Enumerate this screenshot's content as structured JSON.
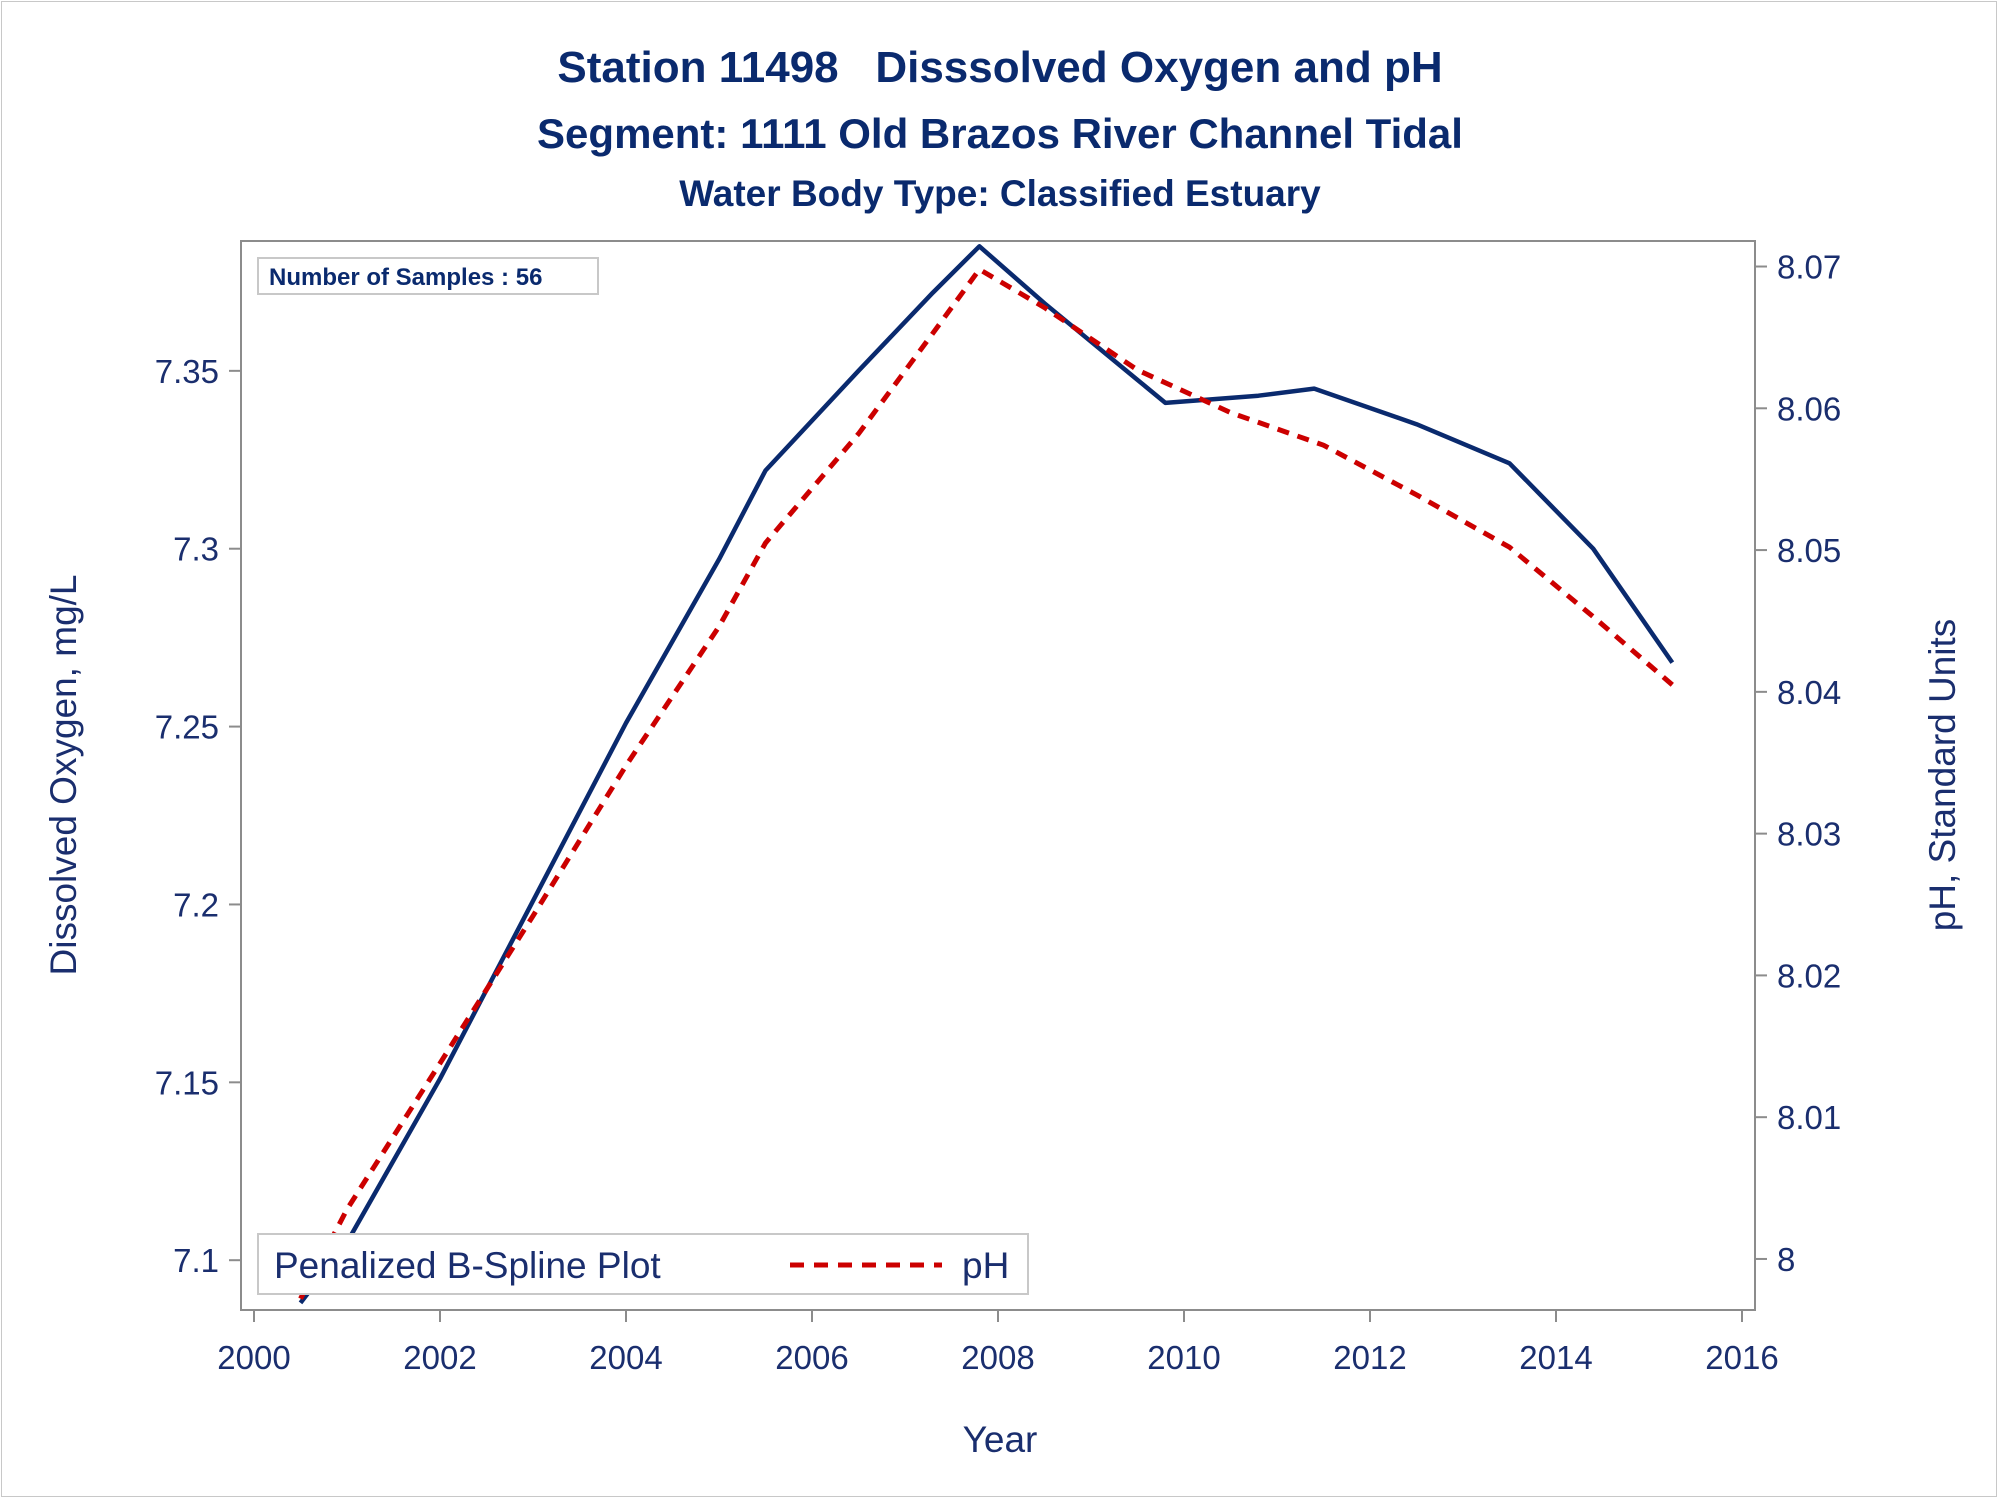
{
  "titles": {
    "line1": "Station 11498   Disssolved Oxygen and pH",
    "line2": "Segment: 1111  Old Brazos River Channel Tidal",
    "line3": "Water Body Type: Classified Estuary"
  },
  "inset": {
    "text": "Number of Samples : 56"
  },
  "legend": {
    "title": "Penalized B-Spline Plot",
    "series_label": "pH"
  },
  "colors": {
    "do_line": "#0a2a6e",
    "ph_line": "#cc0000",
    "text": "#1a2e6e",
    "axis": "#8c8c8c"
  },
  "chart_data": {
    "type": "line",
    "xlabel": "Year",
    "ylabel_left": "Dissolved Oxygen, mg/L",
    "ylabel_right": "pH, Standard Units",
    "xlim": [
      2000,
      2016
    ],
    "ylim_left": [
      7.086,
      7.3865
    ],
    "ylim_right": [
      7.9964,
      8.0718
    ],
    "x_ticks": [
      2000,
      2002,
      2004,
      2006,
      2008,
      2010,
      2012,
      2014,
      2016
    ],
    "y_left_ticks": [
      7.1,
      7.15,
      7.2,
      7.25,
      7.3,
      7.35
    ],
    "y_right_ticks": [
      8,
      8.01,
      8.02,
      8.03,
      8.04,
      8.05,
      8.06,
      8.07
    ],
    "series": [
      {
        "axis": "left",
        "style": "solid",
        "x": [
          2000.5,
          2001.0,
          2002.0,
          2003.0,
          2004.0,
          2005.0,
          2005.5,
          2006.5,
          2007.3,
          2007.8,
          2008.5,
          2009.8,
          2010.8,
          2011.4,
          2012.5,
          2013.5,
          2014.4,
          2015.25
        ],
        "values": [
          7.088,
          7.105,
          7.151,
          7.201,
          7.251,
          7.297,
          7.322,
          7.35,
          7.372,
          7.385,
          7.369,
          7.341,
          7.343,
          7.345,
          7.335,
          7.324,
          7.3,
          7.268
        ]
      },
      {
        "name": "pH",
        "axis": "right",
        "style": "dashed",
        "x": [
          2000.5,
          2001.0,
          2002.0,
          2003.0,
          2004.0,
          2005.0,
          2005.5,
          2006.5,
          2007.3,
          2007.8,
          2008.5,
          2009.5,
          2010.5,
          2011.5,
          2012.5,
          2013.5,
          2014.4,
          2015.25
        ],
        "values": [
          7.9972,
          8.0035,
          8.0138,
          8.0242,
          8.0348,
          8.0446,
          8.0505,
          8.0582,
          8.0653,
          8.0698,
          8.0671,
          8.0627,
          8.0597,
          8.0574,
          8.0539,
          8.0502,
          8.0453,
          8.0405
        ]
      }
    ]
  }
}
